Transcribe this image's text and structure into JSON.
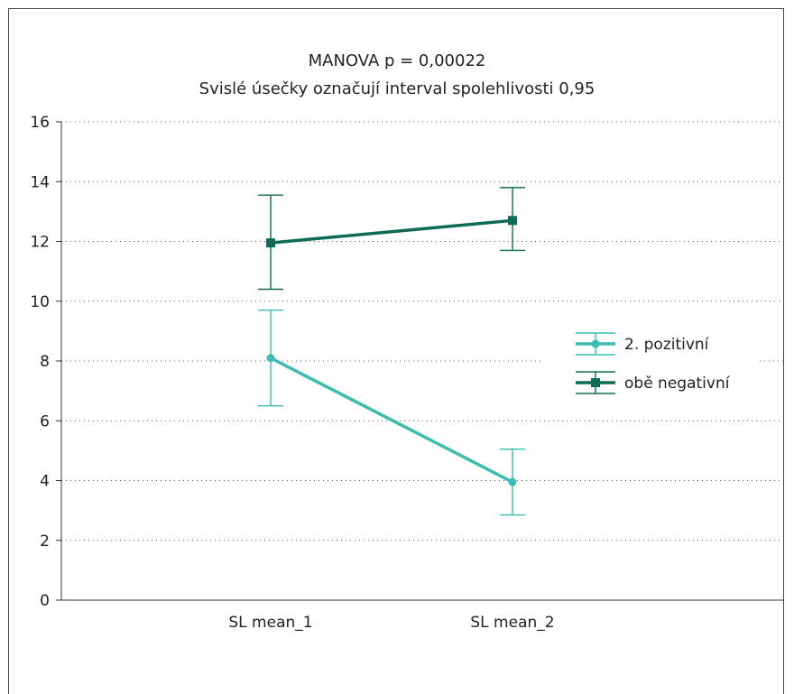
{
  "chart_data": {
    "type": "line",
    "title": "MANOVA  p = 0,00022",
    "subtitle": "Svislé úsečky označují interval spolehlivosti 0,95",
    "xlabel": "",
    "ylabel": "",
    "categories": [
      "SL mean_1",
      "SL mean_2"
    ],
    "ylim": [
      0,
      16
    ],
    "yticks": [
      0,
      2,
      4,
      6,
      8,
      10,
      12,
      14,
      16
    ],
    "grid": true,
    "legend_position": "right",
    "series": [
      {
        "name": "2. pozitivní",
        "color": "#3dbdb2",
        "marker": "circle",
        "values": [
          8.1,
          3.95
        ],
        "ci_low": [
          6.5,
          2.85
        ],
        "ci_high": [
          9.7,
          5.05
        ]
      },
      {
        "name": "obě negativní",
        "color": "#0f6b55",
        "marker": "square",
        "values": [
          11.95,
          12.7
        ],
        "ci_low": [
          10.4,
          11.7
        ],
        "ci_high": [
          13.55,
          13.8
        ]
      }
    ]
  }
}
